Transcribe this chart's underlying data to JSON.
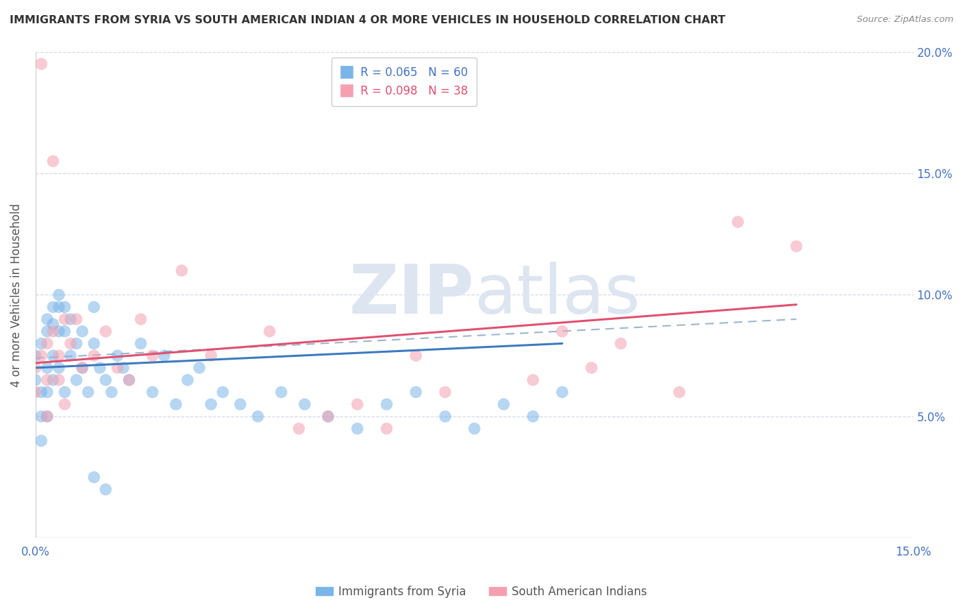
{
  "title": "IMMIGRANTS FROM SYRIA VS SOUTH AMERICAN INDIAN 4 OR MORE VEHICLES IN HOUSEHOLD CORRELATION CHART",
  "source": "Source: ZipAtlas.com",
  "ylabel": "4 or more Vehicles in Household",
  "legend_label1": "Immigrants from Syria",
  "legend_label2": "South American Indians",
  "legend_r1": "R = 0.065",
  "legend_n1": "N = 60",
  "legend_r2": "R = 0.098",
  "legend_n2": "N = 38",
  "color_blue": "#7ab5e8",
  "color_pink": "#f4a0b0",
  "color_blue_line": "#3d7abf",
  "color_pink_line": "#e05070",
  "color_dashed": "#9ab5d0",
  "color_text_blue": "#4472c4",
  "color_text_pink": "#e05070",
  "watermark": "ZIPatlas",
  "xlim": [
    0.0,
    0.15
  ],
  "ylim": [
    0.0,
    0.2
  ],
  "yticks": [
    0.05,
    0.1,
    0.15,
    0.2
  ],
  "syria_x": [
    0.0,
    0.0,
    0.001,
    0.001,
    0.001,
    0.001,
    0.002,
    0.002,
    0.002,
    0.002,
    0.002,
    0.003,
    0.003,
    0.003,
    0.003,
    0.004,
    0.004,
    0.004,
    0.004,
    0.005,
    0.005,
    0.005,
    0.006,
    0.006,
    0.007,
    0.007,
    0.008,
    0.008,
    0.009,
    0.01,
    0.01,
    0.011,
    0.012,
    0.013,
    0.014,
    0.015,
    0.016,
    0.018,
    0.02,
    0.022,
    0.024,
    0.026,
    0.028,
    0.03,
    0.032,
    0.035,
    0.038,
    0.042,
    0.046,
    0.05,
    0.055,
    0.06,
    0.065,
    0.07,
    0.075,
    0.08,
    0.085,
    0.09,
    0.01,
    0.012
  ],
  "syria_y": [
    0.075,
    0.065,
    0.08,
    0.06,
    0.05,
    0.04,
    0.09,
    0.085,
    0.07,
    0.06,
    0.05,
    0.095,
    0.088,
    0.075,
    0.065,
    0.1,
    0.095,
    0.085,
    0.07,
    0.095,
    0.085,
    0.06,
    0.09,
    0.075,
    0.08,
    0.065,
    0.085,
    0.07,
    0.06,
    0.095,
    0.08,
    0.07,
    0.065,
    0.06,
    0.075,
    0.07,
    0.065,
    0.08,
    0.06,
    0.075,
    0.055,
    0.065,
    0.07,
    0.055,
    0.06,
    0.055,
    0.05,
    0.06,
    0.055,
    0.05,
    0.045,
    0.055,
    0.06,
    0.05,
    0.045,
    0.055,
    0.05,
    0.06,
    0.025,
    0.02
  ],
  "sa_indian_x": [
    0.0,
    0.0,
    0.001,
    0.001,
    0.002,
    0.002,
    0.002,
    0.003,
    0.003,
    0.004,
    0.004,
    0.005,
    0.005,
    0.006,
    0.007,
    0.008,
    0.01,
    0.012,
    0.014,
    0.016,
    0.018,
    0.02,
    0.025,
    0.03,
    0.04,
    0.045,
    0.05,
    0.055,
    0.06,
    0.065,
    0.07,
    0.085,
    0.09,
    0.095,
    0.1,
    0.11,
    0.12,
    0.13
  ],
  "sa_indian_y": [
    0.07,
    0.06,
    0.195,
    0.075,
    0.08,
    0.065,
    0.05,
    0.155,
    0.085,
    0.075,
    0.065,
    0.09,
    0.055,
    0.08,
    0.09,
    0.07,
    0.075,
    0.085,
    0.07,
    0.065,
    0.09,
    0.075,
    0.11,
    0.075,
    0.085,
    0.045,
    0.05,
    0.055,
    0.045,
    0.075,
    0.06,
    0.065,
    0.085,
    0.07,
    0.08,
    0.06,
    0.13,
    0.12
  ],
  "line_syria_x0": 0.0,
  "line_syria_x1": 0.09,
  "line_syria_y0": 0.07,
  "line_syria_y1": 0.08,
  "line_sa_x0": 0.0,
  "line_sa_x1": 0.13,
  "line_sa_y0": 0.072,
  "line_sa_y1": 0.096,
  "line_dash_x0": 0.0,
  "line_dash_x1": 0.13,
  "line_dash_y0": 0.074,
  "line_dash_y1": 0.09
}
